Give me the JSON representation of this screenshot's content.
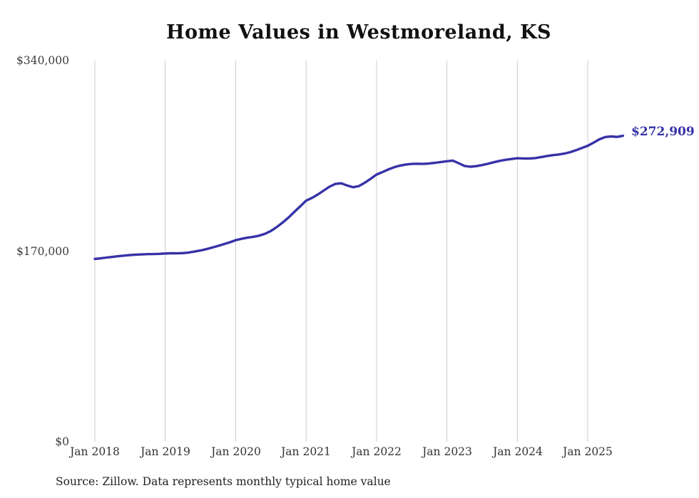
{
  "title": "Home Values in Westmoreland, KS",
  "final_value_label": "$272,909",
  "source_note": "Source: Zillow. Data represents monthly typical home value",
  "colors": {
    "line": "#3632a8",
    "grid": "#cccccc",
    "axis_text": "#3d3d3d",
    "value_label": "#3632a8"
  },
  "chart_data": {
    "type": "line",
    "title": "Home Values in Westmoreland, KS",
    "xlabel": "",
    "ylabel": "",
    "ylim": [
      0,
      340000
    ],
    "grid": "vertical-yearly",
    "legend": "none",
    "x_start": "2018-01",
    "x_end": "2025-07",
    "x_tick_labels": [
      "Jan 2018",
      "Jan 2019",
      "Jan 2020",
      "Jan 2021",
      "Jan 2022",
      "Jan 2023",
      "Jan 2024",
      "Jan 2025"
    ],
    "y_tick_labels_top_down": [
      "$340,000",
      "$170,000",
      "$0"
    ],
    "final_value": 272909,
    "series": [
      {
        "name": "Monthly typical home value",
        "values": [
          163000,
          163600,
          164300,
          164900,
          165500,
          166000,
          166500,
          166900,
          167100,
          167300,
          167400,
          167600,
          167900,
          168100,
          168000,
          168200,
          168800,
          169600,
          170600,
          171800,
          173200,
          174700,
          176300,
          177900,
          179800,
          181000,
          182000,
          182800,
          183800,
          185500,
          188000,
          191500,
          195500,
          200000,
          205000,
          210000,
          215000,
          217500,
          220500,
          224000,
          227500,
          230000,
          230500,
          228500,
          227000,
          228000,
          231000,
          234500,
          238300,
          240500,
          242800,
          244800,
          246300,
          247300,
          247800,
          248000,
          247800,
          248200,
          248800,
          249500,
          250200,
          250800,
          248500,
          246000,
          245300,
          245800,
          246800,
          248000,
          249300,
          250500,
          251500,
          252200,
          252900,
          252700,
          252600,
          253000,
          253800,
          254800,
          255600,
          256200,
          257000,
          258300,
          260000,
          262000,
          264000,
          266800,
          269800,
          271800,
          272300,
          271900,
          272909
        ]
      }
    ]
  }
}
